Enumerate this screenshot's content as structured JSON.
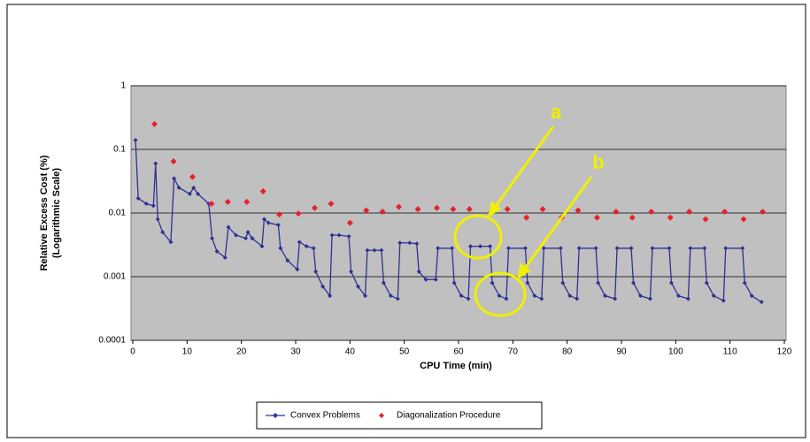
{
  "chart_data": {
    "type": "line",
    "ylabel": [
      "Relative Excess Cost (%)",
      "(Logarithmic Scale)"
    ],
    "xlabel": "CPU Time (min)",
    "annotations": [
      "a",
      "b"
    ],
    "xlim": [
      0,
      120
    ],
    "xticks": [
      0,
      10,
      20,
      30,
      40,
      50,
      60,
      70,
      80,
      90,
      100,
      110,
      120
    ],
    "ylim": [
      0.0001,
      1
    ],
    "yticks": [
      0.0001,
      0.001,
      0.01,
      0.1,
      1
    ],
    "ylog": true,
    "grid": true,
    "legend": "bottom",
    "series": [
      {
        "name": "Convex Problems",
        "color": "#2e3192",
        "style": "line-markers",
        "x": [
          0.5,
          1,
          2.5,
          3.8,
          4.2,
          4.6,
          5.5,
          7,
          7.6,
          8.5,
          10.5,
          11.2,
          12,
          14,
          14.6,
          15.5,
          17,
          17.6,
          19,
          20.8,
          21.2,
          22,
          23.8,
          24.2,
          25,
          26.8,
          27.2,
          28.5,
          30.3,
          30.7,
          32,
          33.3,
          33.7,
          35,
          36.3,
          36.7,
          38,
          39.8,
          40.2,
          41.5,
          42.8,
          43.2,
          44.5,
          45.8,
          46.2,
          47.5,
          48.8,
          49.2,
          51,
          52.3,
          52.7,
          54,
          55.8,
          56.2,
          58.8,
          59.2,
          60.5,
          61.8,
          62.2,
          64,
          65.8,
          66.2,
          67.5,
          68.8,
          69.2,
          72.3,
          72.7,
          74,
          75.3,
          75.7,
          78.8,
          79.2,
          80.5,
          81.8,
          82.2,
          85.3,
          85.7,
          87,
          88.8,
          89.2,
          91.8,
          92.2,
          93.5,
          95.3,
          95.7,
          98.8,
          99.2,
          100.5,
          102.3,
          102.7,
          105.3,
          105.7,
          107,
          108.8,
          109.2,
          112.3,
          112.7,
          114,
          115.8
        ],
        "values": [
          0.14,
          0.017,
          0.014,
          0.013,
          0.06,
          0.008,
          0.005,
          0.0035,
          0.035,
          0.025,
          0.02,
          0.025,
          0.02,
          0.014,
          0.004,
          0.0025,
          0.002,
          0.006,
          0.0045,
          0.004,
          0.005,
          0.004,
          0.003,
          0.008,
          0.007,
          0.0065,
          0.0028,
          0.0018,
          0.0013,
          0.0035,
          0.003,
          0.0028,
          0.0012,
          0.0007,
          0.0005,
          0.0045,
          0.0045,
          0.0043,
          0.0012,
          0.0007,
          0.0005,
          0.0026,
          0.0026,
          0.0026,
          0.0008,
          0.0005,
          0.00045,
          0.0034,
          0.0034,
          0.0033,
          0.0012,
          0.0009,
          0.0009,
          0.0028,
          0.0028,
          0.0008,
          0.0005,
          0.00045,
          0.003,
          0.003,
          0.003,
          0.0008,
          0.0005,
          0.00045,
          0.0028,
          0.0028,
          0.0008,
          0.0005,
          0.00045,
          0.0028,
          0.0028,
          0.0008,
          0.0005,
          0.00045,
          0.0028,
          0.0028,
          0.0008,
          0.0005,
          0.00045,
          0.0028,
          0.0028,
          0.0008,
          0.0005,
          0.00045,
          0.0028,
          0.0028,
          0.0008,
          0.0005,
          0.00045,
          0.0028,
          0.0028,
          0.0008,
          0.0005,
          0.00042,
          0.0028,
          0.0028,
          0.0008,
          0.0005,
          0.0004
        ]
      },
      {
        "name": "Diagonalization Procedure",
        "color": "#e8202a",
        "style": "markers",
        "x": [
          4,
          7.5,
          11,
          14.5,
          17.5,
          21,
          24,
          27,
          30.5,
          33.5,
          36.5,
          40,
          43,
          46,
          49,
          52.5,
          56,
          59,
          62,
          66,
          69,
          72.5,
          75.5,
          79,
          82,
          85.5,
          89,
          92,
          95.5,
          99,
          102.5,
          105.5,
          109,
          112.5,
          116
        ],
        "values": [
          0.25,
          0.065,
          0.037,
          0.014,
          0.015,
          0.015,
          0.022,
          0.0095,
          0.0098,
          0.012,
          0.014,
          0.007,
          0.011,
          0.0105,
          0.0125,
          0.0115,
          0.012,
          0.0115,
          0.0115,
          0.0105,
          0.0115,
          0.0085,
          0.0115,
          0.0085,
          0.011,
          0.0085,
          0.0105,
          0.0085,
          0.0105,
          0.0085,
          0.0105,
          0.008,
          0.0105,
          0.008,
          0.0105
        ]
      }
    ]
  }
}
